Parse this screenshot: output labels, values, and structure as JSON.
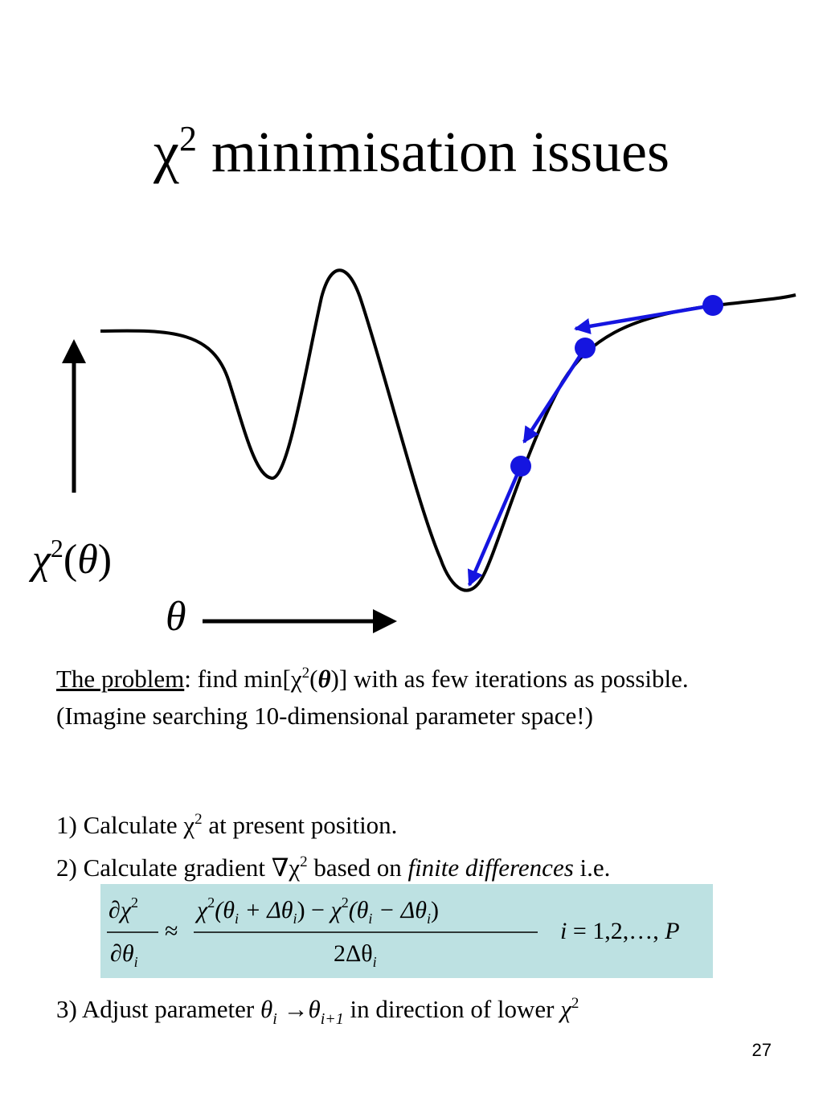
{
  "slide": {
    "title_symbol": "χ",
    "title_sup": "2",
    "title_text": " minimisation issues",
    "page_number": "27"
  },
  "illustration": {
    "y_label_symbol": "χ",
    "y_label_sup": "2",
    "y_label_open": "(",
    "y_label_var": "θ",
    "y_label_close": ")",
    "x_label": "θ",
    "curve_color": "#000000",
    "step_color": "#1515e0",
    "iteration_point_count": 3
  },
  "problem": {
    "lead": "The problem",
    "text_1": ": find min[χ",
    "sup": "2",
    "text_2": "(",
    "bold_theta": "θ",
    "text_3": ")] with as few iterations as possible. (Imagine searching 10-dimensional parameter space!)"
  },
  "steps": {
    "step1_a": "1) Calculate χ",
    "step1_sup": "2",
    "step1_b": " at present position.",
    "step2_a": "2) Calculate gradient ∇χ",
    "step2_sup": "2",
    "step2_b": " based on ",
    "step2_italic": "finite differences",
    "step2_c": " i.e.",
    "step3_a": "3) Adjust parameter ",
    "step3_theta": "θ",
    "step3_sub_i": "i",
    "step3_arrow": " →",
    "step3_theta2": "θ",
    "step3_sub_ip1": "i+1",
    "step3_b": " in direction of lower ",
    "step3_chi": "χ",
    "step3_sup": "2"
  },
  "formula": {
    "background": "#bde1e2",
    "lhs_num": "∂χ",
    "lhs_sup": "2",
    "lhs_den": "∂θ",
    "lhs_den_sub": "i",
    "approx": "≈",
    "rhs_num_chi": "χ",
    "rhs_num_sup": "2",
    "rhs_num_1": "(θ",
    "rhs_num_sub1": "i",
    "rhs_num_2": " + Δθ",
    "rhs_num_sub2": "i",
    "rhs_num_3": ") − ",
    "rhs_num_chi2": "χ",
    "rhs_num_sup2": "2",
    "rhs_num_4": "(θ",
    "rhs_num_sub3": "i",
    "rhs_num_5": " − Δθ",
    "rhs_num_sub4": "i",
    "rhs_num_6": ")",
    "rhs_den": "2Δθ",
    "rhs_den_sub": "i",
    "index_i": "i",
    "index_eq": " = 1,2,…, ",
    "index_P": "P"
  }
}
